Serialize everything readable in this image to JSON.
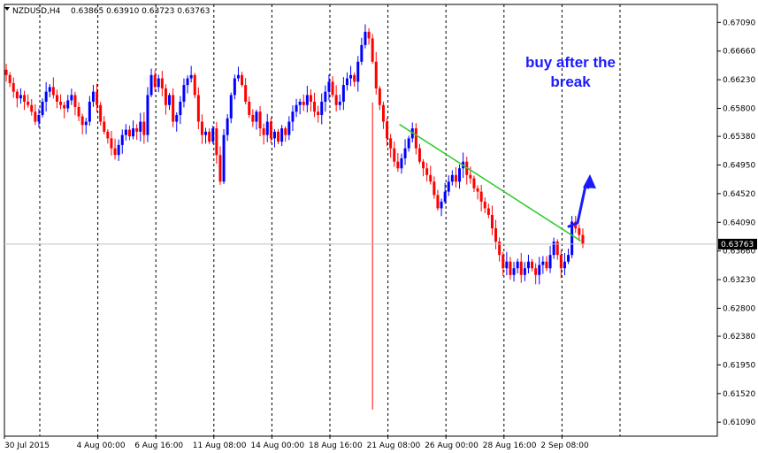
{
  "header": {
    "symbol_timeframe": "NZDUSD,H4",
    "ohlc": "0.63865 0.63910 0.63723 0.63763"
  },
  "annotation": {
    "line1": "buy after the",
    "line2": "break"
  },
  "current_price_label": "0.63763",
  "colors": {
    "bull": "#0000ff",
    "bear": "#ff0000",
    "trendline": "#33cc33",
    "arrow": "#1a1aff",
    "grid": "#000000",
    "price_line": "#c0c0c0"
  },
  "chart_data": {
    "type": "candlestick",
    "ylim": [
      0.6088,
      0.6736
    ],
    "y_ticks": [
      "0.67090",
      "0.66660",
      "0.66230",
      "0.65800",
      "0.65380",
      "0.64950",
      "0.64520",
      "0.64090",
      "0.63660",
      "0.63230",
      "0.62800",
      "0.62380",
      "0.61950",
      "0.61520",
      "0.61090"
    ],
    "x_ticks": [
      "30 Jul 2015",
      "4 Aug 00:00",
      "6 Aug 16:00",
      "11 Aug 08:00",
      "14 Aug 00:00",
      "18 Aug 16:00",
      "21 Aug 08:00",
      "26 Aug 00:00",
      "28 Aug 16:00",
      "2 Sep 08:00"
    ],
    "bars_per_tick": 16,
    "total_bars": 166,
    "current_price": 0.63763,
    "trendline": {
      "from": {
        "bar": 116,
        "price": 0.6556
      },
      "to": {
        "bar": 166,
        "price": 0.6381
      }
    },
    "series_close": [
      0.663,
      0.6618,
      0.6605,
      0.6595,
      0.66,
      0.659,
      0.6585,
      0.6575,
      0.656,
      0.657,
      0.659,
      0.6605,
      0.6612,
      0.66,
      0.659,
      0.6585,
      0.658,
      0.6592,
      0.66,
      0.6582,
      0.6568,
      0.6555,
      0.656,
      0.659,
      0.6605,
      0.6585,
      0.656,
      0.6545,
      0.6535,
      0.652,
      0.651,
      0.6525,
      0.654,
      0.6548,
      0.6538,
      0.655,
      0.6545,
      0.656,
      0.654,
      0.66,
      0.663,
      0.6612,
      0.6625,
      0.661,
      0.6585,
      0.66,
      0.656,
      0.657,
      0.659,
      0.6615,
      0.6625,
      0.663,
      0.66,
      0.656,
      0.654,
      0.6545,
      0.653,
      0.655,
      0.651,
      0.647,
      0.654,
      0.6565,
      0.66,
      0.6625,
      0.663,
      0.6615,
      0.659,
      0.657,
      0.656,
      0.6575,
      0.655,
      0.654,
      0.656,
      0.6535,
      0.6545,
      0.653,
      0.655,
      0.654,
      0.656,
      0.6575,
      0.6585,
      0.659,
      0.6585,
      0.66,
      0.659,
      0.6575,
      0.657,
      0.659,
      0.6605,
      0.662,
      0.66,
      0.6585,
      0.659,
      0.6615,
      0.6625,
      0.663,
      0.662,
      0.665,
      0.6675,
      0.6695,
      0.6685,
      0.665,
      0.661,
      0.6585,
      0.656,
      0.6535,
      0.652,
      0.65,
      0.649,
      0.6505,
      0.652,
      0.6535,
      0.655,
      0.652,
      0.65,
      0.649,
      0.648,
      0.647,
      0.645,
      0.643,
      0.644,
      0.6455,
      0.647,
      0.648,
      0.647,
      0.649,
      0.65,
      0.648,
      0.6475,
      0.646,
      0.6455,
      0.644,
      0.643,
      0.642,
      0.64,
      0.638,
      0.636,
      0.634,
      0.635,
      0.633,
      0.634,
      0.635,
      0.633,
      0.634,
      0.635,
      0.634,
      0.633,
      0.6345,
      0.635,
      0.634,
      0.636,
      0.638,
      0.636,
      0.634,
      0.635,
      0.636,
      0.641,
      0.64,
      0.639,
      0.6376
    ]
  }
}
